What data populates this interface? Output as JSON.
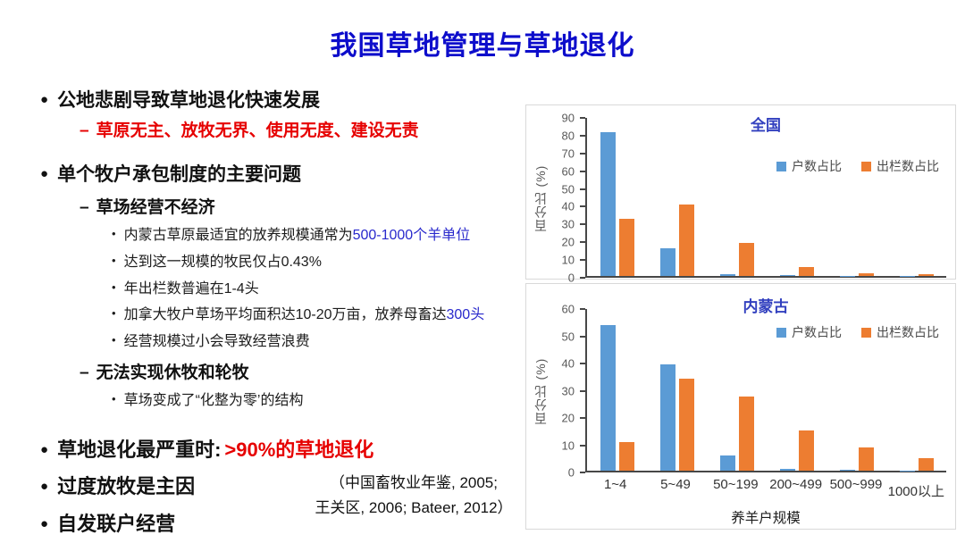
{
  "title": "我国草地管理与草地退化",
  "markers": {
    "l1": "●",
    "l2": "–",
    "l3": "•"
  },
  "colors": {
    "title_blue": "#0d0dcb",
    "chart_title_blue": "#3240bf",
    "highlight_red": "#e60000",
    "highlight_blue": "#2929cc",
    "bar_blue": "#5B9BD5",
    "bar_orange": "#ED7D31"
  },
  "left": {
    "b1": "公地悲剧导致草地退化快速发展",
    "b1_sub": "草原无主、放牧无界、使用无度、建设无责",
    "b2": "单个牧户承包制度的主要问题",
    "b2_s1": "草场经营不经济",
    "b2_s1_i1_pre": "内蒙古草原最适宜的放养规模通常为",
    "b2_s1_i1_hl": "500-1000个羊单位",
    "b2_s1_i2": "达到这一规模的牧民仅占0.43%",
    "b2_s1_i3": "年出栏数普遍在1-4头",
    "b2_s1_i4_pre": "加拿大牧户草场平均面积达10-20万亩，放养母畜达",
    "b2_s1_i4_hl": "300头",
    "b2_s1_i5": "经营规模过小会导致经营浪费",
    "b2_s2": "无法实现休牧和轮牧",
    "b2_s2_i1": "草场变成了“化整为零’的结构",
    "b3_pre": "草地退化最严重时:",
    "b3_hl": ">90%的草地退化",
    "b4": "过度放牧是主因",
    "b5": "自发联户经营",
    "citation_line1": "（中国畜牧业年鉴, 2005;",
    "citation_line2": "王关区, 2006; Bateer, 2012）"
  },
  "chart_data": [
    {
      "type": "bar",
      "title": "全国",
      "ylabel": "百分比 (%)",
      "xlabel": "",
      "ylim": [
        0,
        90
      ],
      "ystep": 10,
      "grid": false,
      "legend_position": "inside-top-right",
      "x_labels_shown": false,
      "categories": [
        "1~4",
        "5~49",
        "50~199",
        "200~499",
        "500~999",
        "1000以上"
      ],
      "series": [
        {
          "name": "户数占比",
          "color": "#5B9BD5",
          "values": [
            82,
            16,
            1,
            0.3,
            0.2,
            0.2
          ]
        },
        {
          "name": "出栏数占比",
          "color": "#ED7D31",
          "values": [
            32.5,
            40.5,
            19,
            5,
            1.5,
            0.8
          ]
        }
      ]
    },
    {
      "type": "bar",
      "title": "内蒙古",
      "ylabel": "百分比 (%)",
      "xlabel": "养羊户规模",
      "ylim": [
        0,
        60
      ],
      "ystep": 10,
      "grid": false,
      "legend_position": "inside-top-right",
      "x_labels_shown": true,
      "categories": [
        "1~4",
        "5~49",
        "50~199",
        "200~499",
        "500~999",
        "1000以上"
      ],
      "series": [
        {
          "name": "户数占比",
          "color": "#5B9BD5",
          "values": [
            54,
            39.5,
            5.5,
            0.7,
            0.3,
            0.1
          ]
        },
        {
          "name": "出栏数占比",
          "color": "#ED7D31",
          "values": [
            10.5,
            34,
            27.5,
            15,
            8.7,
            4.8
          ]
        }
      ]
    }
  ]
}
